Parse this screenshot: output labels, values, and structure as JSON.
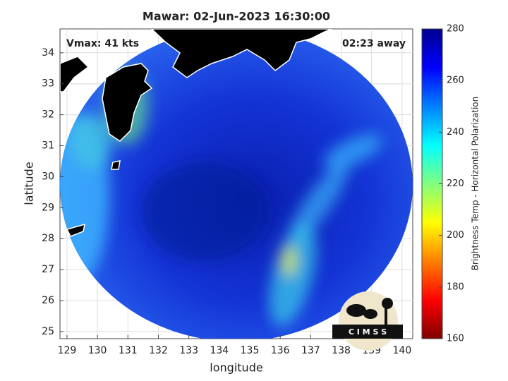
{
  "chart_data": {
    "type": "map",
    "title": "Mawar: 02-Jun-2023 16:30:00",
    "xlabel": "longitude",
    "ylabel": "latitude",
    "xlim": [
      128.77,
      140.35
    ],
    "ylim": [
      24.77,
      34.77
    ],
    "xticks": [
      129,
      130,
      131,
      132,
      133,
      134,
      135,
      136,
      137,
      138,
      139,
      140
    ],
    "yticks": [
      25,
      26,
      27,
      28,
      29,
      30,
      31,
      32,
      33,
      34
    ],
    "grid": true,
    "annotations": [
      "Vmax: 41 kts",
      "02:23 away"
    ],
    "logo_text": "C I M S S",
    "colorbar": {
      "label": "Brightness Temp - Horizontal Polarization",
      "lim": [
        160,
        280
      ],
      "ticks": [
        160,
        180,
        200,
        220,
        240,
        260,
        280
      ],
      "colormap": "jet"
    }
  }
}
